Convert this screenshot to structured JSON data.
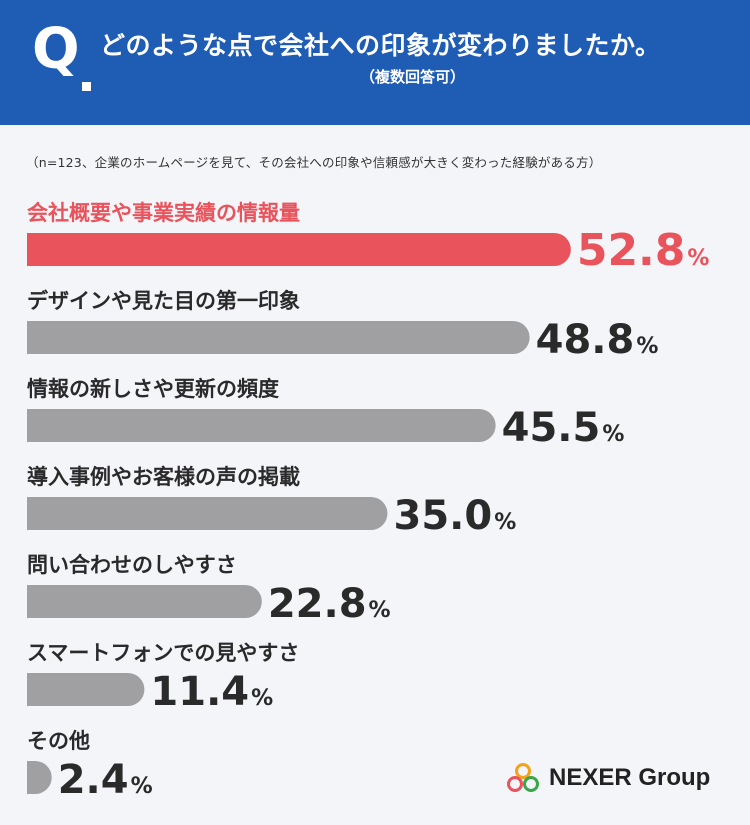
{
  "header": {
    "q_mark": "Q",
    "question": "どのような点で会社への印象が変わりましたか。",
    "subnote": "（複数回答可）"
  },
  "note": "（n=123、企業のホームページを見て、その会社への印象や信頼感が大きく変わった経験がある方）",
  "logo": {
    "text": "NEXER Group"
  },
  "colors": {
    "header_bg": "#1f5cb4",
    "highlight": "#e9535c",
    "bar_gray": "#a0a0a3"
  },
  "chart_data": {
    "type": "bar",
    "orientation": "horizontal",
    "unit": "%",
    "categories": [
      "会社概要や事業実績の情報量",
      "デザインや見た目の第一印象",
      "情報の新しさや更新の頻度",
      "導入事例やお客様の声の掲載",
      "問い合わせのしやすさ",
      "スマートフォンでの見やすさ",
      "その他"
    ],
    "values": [
      52.8,
      48.8,
      45.5,
      35.0,
      22.8,
      11.4,
      2.4
    ],
    "value_labels": [
      "52.8",
      "48.8",
      "45.5",
      "35.0",
      "22.8",
      "11.4",
      "2.4"
    ],
    "highlight_index": 0,
    "xlim": [
      0,
      100
    ]
  }
}
